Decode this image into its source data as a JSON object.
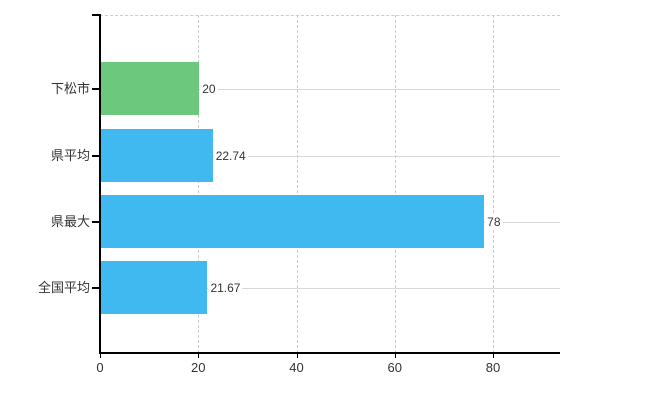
{
  "chart_data": {
    "type": "bar",
    "orientation": "horizontal",
    "title": "",
    "xlabel": "",
    "ylabel": "",
    "categories": [
      "下松市",
      "県平均",
      "県最大",
      "全国平均"
    ],
    "values": [
      20,
      22.74,
      78,
      21.67
    ],
    "value_labels": [
      "20",
      "22.74",
      "78",
      "21.67"
    ],
    "bar_colors": [
      "#6cc87c",
      "#3fb9ef",
      "#3fb9ef",
      "#3fb9ef"
    ],
    "x_tick_labels": [
      "0",
      "20",
      "40",
      "60",
      "80"
    ],
    "x_tick_values": [
      0,
      20,
      40,
      60,
      80
    ],
    "xlim": [
      0,
      93.6
    ],
    "grid": {
      "vertical_style": "dashed",
      "horizontal_style": "solid",
      "top_border_style": "dashed"
    },
    "legend": "none"
  },
  "colors": {
    "background": "#ffffff",
    "axis_line": "#000000",
    "grid_solid": "#d8d8d8",
    "grid_dashed": "#cccccc",
    "text": "#333333",
    "bar_green": "#6cc87c",
    "bar_blue": "#3fb9ef"
  }
}
